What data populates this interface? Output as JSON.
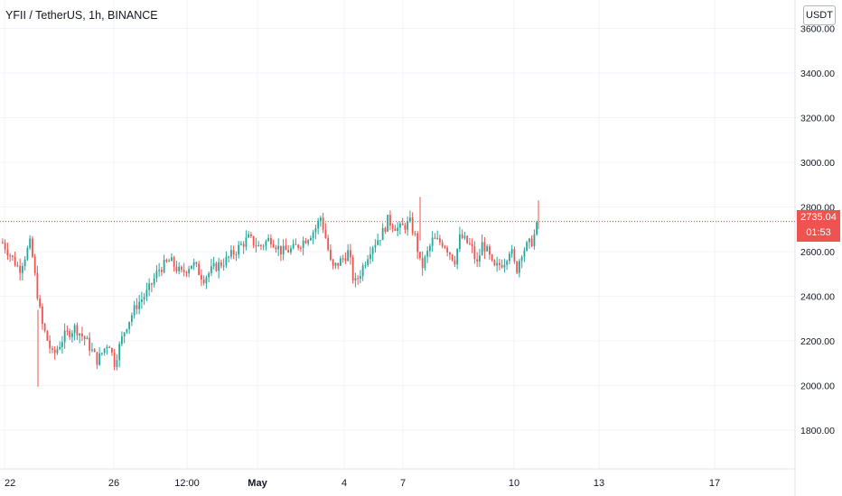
{
  "header": {
    "title": "YFII / TetherUS, 1h, BINANCE"
  },
  "scale": {
    "currency_label": "USDT"
  },
  "last_price": {
    "value": "2735.04",
    "countdown": "01:53"
  },
  "colors": {
    "up": "#26a69a",
    "down": "#ef5350",
    "grid": "#f0f3fa",
    "axis_text": "#131722"
  },
  "chart_data": {
    "type": "candlestick",
    "y_ticks": [
      "3600.00",
      "3400.00",
      "3200.00",
      "3000.00",
      "2800.00",
      "2600.00",
      "2400.00",
      "2200.00",
      "2000.00",
      "1800.00"
    ],
    "ylim": [
      1640,
      3640
    ],
    "x_ticks": [
      "22",
      "26",
      "12:00",
      "May",
      "4",
      "7",
      "10",
      "13",
      "17"
    ],
    "last_price": 2735.04,
    "price_path": [
      [
        0,
        2640
      ],
      [
        3,
        2520
      ],
      [
        5,
        2640
      ],
      [
        6,
        2450
      ],
      [
        7,
        2280
      ],
      [
        9,
        2130
      ],
      [
        11,
        2220
      ],
      [
        13,
        2260
      ],
      [
        15,
        2200
      ],
      [
        17,
        2110
      ],
      [
        19,
        2200
      ],
      [
        20,
        2100
      ],
      [
        22,
        2260
      ],
      [
        24,
        2360
      ],
      [
        26,
        2420
      ],
      [
        28,
        2520
      ],
      [
        30,
        2560
      ],
      [
        32,
        2500
      ],
      [
        34,
        2550
      ],
      [
        36,
        2480
      ],
      [
        38,
        2530
      ],
      [
        40,
        2560
      ],
      [
        42,
        2610
      ],
      [
        44,
        2660
      ],
      [
        46,
        2620
      ],
      [
        48,
        2660
      ],
      [
        50,
        2600
      ],
      [
        52,
        2610
      ],
      [
        54,
        2650
      ],
      [
        56,
        2700
      ],
      [
        57,
        2755
      ],
      [
        58,
        2650
      ],
      [
        59,
        2520
      ],
      [
        61,
        2570
      ],
      [
        62,
        2600
      ],
      [
        63,
        2450
      ],
      [
        64,
        2500
      ],
      [
        66,
        2620
      ],
      [
        68,
        2680
      ],
      [
        69,
        2740
      ],
      [
        71,
        2700
      ],
      [
        73,
        2730
      ],
      [
        74,
        2660
      ],
      [
        75,
        2520
      ],
      [
        77,
        2650
      ],
      [
        79,
        2640
      ],
      [
        81,
        2560
      ],
      [
        82,
        2670
      ],
      [
        84,
        2620
      ],
      [
        85,
        2540
      ],
      [
        86,
        2640
      ],
      [
        87,
        2590
      ],
      [
        88,
        2520
      ],
      [
        90,
        2560
      ],
      [
        91,
        2620
      ],
      [
        92,
        2510
      ],
      [
        93,
        2600
      ],
      [
        95,
        2650
      ],
      [
        96,
        2735
      ]
    ]
  }
}
